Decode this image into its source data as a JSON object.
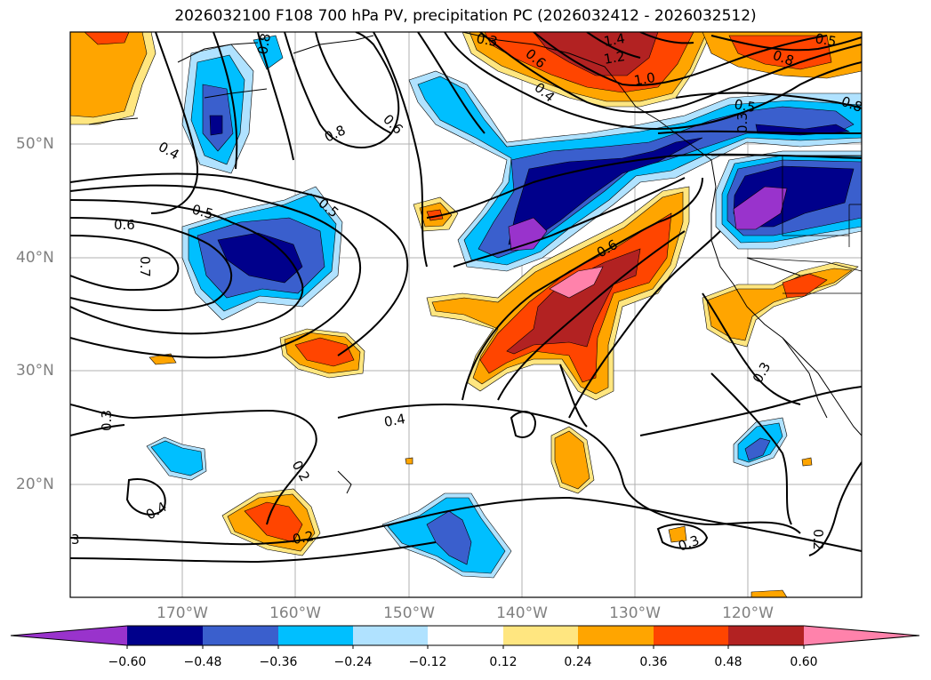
{
  "title": "2026032100 F108 700 hPa PV, precipitation PC (2026032412 - 2026032512)",
  "lat_labels": [
    "50°N",
    "40°N",
    "30°N",
    "20°N"
  ],
  "lon_labels": [
    "170°W",
    "160°W",
    "150°W",
    "140°W",
    "130°W",
    "120°W"
  ],
  "colorbar": {
    "ticks": [
      "−0.60",
      "−0.48",
      "−0.36",
      "−0.24",
      "−0.12",
      "0.12",
      "0.24",
      "0.36",
      "0.48",
      "0.60"
    ],
    "colors": [
      "#9933cc",
      "#00008b",
      "#3a5fcd",
      "#00bfff",
      "#b0e2ff",
      "#ffffff",
      "#ffe680",
      "#ffa500",
      "#ff4500",
      "#b22222",
      "#ff82ab"
    ]
  },
  "contour_labels": [
    "1.4",
    "1.2",
    "1.0",
    "0.6",
    "0.8",
    "0.5",
    "0.8",
    "0.6",
    "0.4",
    "0.8",
    "0.4",
    "0.5",
    "0.5",
    "0.6",
    "0.7",
    "0.6",
    "0.3",
    "0.4",
    "0.3",
    "0.4",
    "0.2",
    "3",
    "0.3",
    "0.2",
    "0.3",
    "0.5",
    "0.8",
    "0.3",
    "0.2"
  ]
}
